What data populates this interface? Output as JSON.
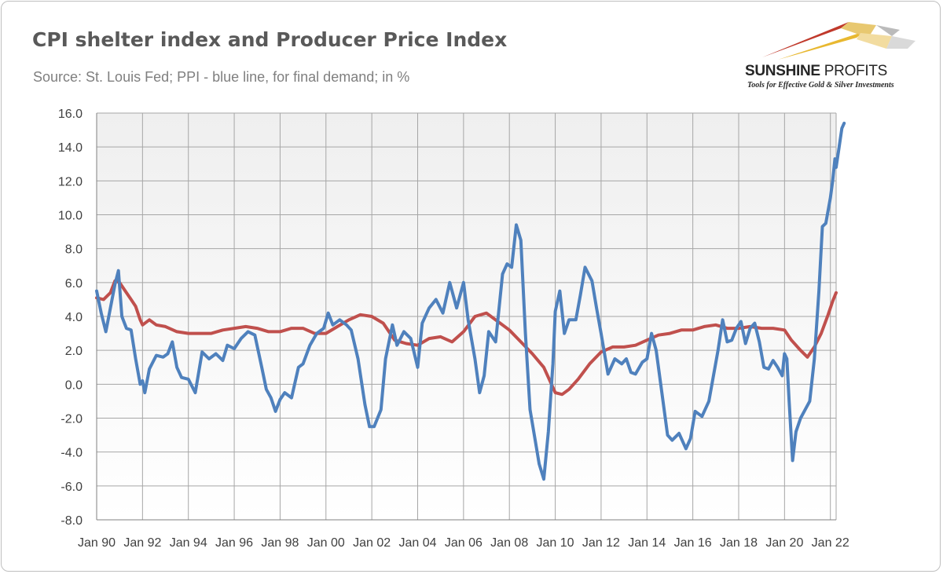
{
  "header": {
    "title": "CPI shelter index and Producer Price Index",
    "subtitle": "Source: St. Louis Fed; PPI - blue line, for final demand; in %"
  },
  "logo": {
    "name_part1": "SUNSHINE",
    "name_part2": "PROFITS",
    "tagline": "Tools for Effective Gold & Silver Investments",
    "colors": [
      "#c0392b",
      "#e8b830",
      "#8c8c8c"
    ]
  },
  "chart_data": {
    "type": "line",
    "title": "CPI shelter index and Producer Price Index",
    "subtitle": "Source: St. Louis Fed; PPI - blue line, for final demand; in %",
    "xlabel": "",
    "ylabel": "",
    "ylim": [
      -8,
      16
    ],
    "xlim": [
      1990.0,
      2022.25
    ],
    "yticks": [
      "16.0",
      "14.0",
      "12.0",
      "10.0",
      "8.0",
      "6.0",
      "4.0",
      "2.0",
      "0.0",
      "-2.0",
      "-4.0",
      "-6.0",
      "-8.0"
    ],
    "xticks": [
      "Jan 90",
      "Jan 92",
      "Jan 94",
      "Jan 96",
      "Jan 98",
      "Jan 00",
      "Jan 02",
      "Jan 04",
      "Jan 06",
      "Jan 08",
      "Jan 10",
      "Jan 12",
      "Jan 14",
      "Jan 16",
      "Jan 18",
      "Jan 20",
      "Jan 22"
    ],
    "grid": true,
    "legend": "none",
    "series": [
      {
        "color": "#c0504d",
        "points": [
          [
            1990.0,
            5.1
          ],
          [
            1990.3,
            5.0
          ],
          [
            1990.6,
            5.4
          ],
          [
            1990.8,
            6.1
          ],
          [
            1991.0,
            6.0
          ],
          [
            1991.2,
            5.6
          ],
          [
            1991.5,
            5.0
          ],
          [
            1991.7,
            4.6
          ],
          [
            1991.9,
            3.8
          ],
          [
            1992.0,
            3.5
          ],
          [
            1992.3,
            3.8
          ],
          [
            1992.6,
            3.5
          ],
          [
            1993.0,
            3.4
          ],
          [
            1993.5,
            3.1
          ],
          [
            1994.0,
            3.0
          ],
          [
            1994.5,
            3.0
          ],
          [
            1995.0,
            3.0
          ],
          [
            1995.5,
            3.2
          ],
          [
            1996.0,
            3.3
          ],
          [
            1996.5,
            3.4
          ],
          [
            1997.0,
            3.3
          ],
          [
            1997.5,
            3.1
          ],
          [
            1998.0,
            3.1
          ],
          [
            1998.5,
            3.3
          ],
          [
            1999.0,
            3.3
          ],
          [
            1999.5,
            3.0
          ],
          [
            2000.0,
            3.0
          ],
          [
            2000.5,
            3.4
          ],
          [
            2001.0,
            3.8
          ],
          [
            2001.5,
            4.1
          ],
          [
            2002.0,
            4.0
          ],
          [
            2002.5,
            3.6
          ],
          [
            2003.0,
            2.6
          ],
          [
            2003.5,
            2.4
          ],
          [
            2004.0,
            2.3
          ],
          [
            2004.5,
            2.7
          ],
          [
            2005.0,
            2.8
          ],
          [
            2005.5,
            2.5
          ],
          [
            2006.0,
            3.1
          ],
          [
            2006.5,
            4.0
          ],
          [
            2007.0,
            4.2
          ],
          [
            2007.5,
            3.7
          ],
          [
            2008.0,
            3.2
          ],
          [
            2008.5,
            2.5
          ],
          [
            2009.0,
            1.8
          ],
          [
            2009.5,
            1.0
          ],
          [
            2010.0,
            -0.5
          ],
          [
            2010.3,
            -0.6
          ],
          [
            2010.6,
            -0.3
          ],
          [
            2011.0,
            0.3
          ],
          [
            2011.5,
            1.2
          ],
          [
            2012.0,
            1.9
          ],
          [
            2012.5,
            2.2
          ],
          [
            2013.0,
            2.2
          ],
          [
            2013.5,
            2.3
          ],
          [
            2014.0,
            2.6
          ],
          [
            2014.5,
            2.9
          ],
          [
            2015.0,
            3.0
          ],
          [
            2015.5,
            3.2
          ],
          [
            2016.0,
            3.2
          ],
          [
            2016.5,
            3.4
          ],
          [
            2017.0,
            3.5
          ],
          [
            2017.5,
            3.3
          ],
          [
            2018.0,
            3.3
          ],
          [
            2018.5,
            3.4
          ],
          [
            2019.0,
            3.3
          ],
          [
            2019.5,
            3.3
          ],
          [
            2020.0,
            3.2
          ],
          [
            2020.3,
            2.6
          ],
          [
            2020.7,
            2.0
          ],
          [
            2021.0,
            1.6
          ],
          [
            2021.3,
            2.2
          ],
          [
            2021.6,
            3.0
          ],
          [
            2021.9,
            4.1
          ],
          [
            2022.1,
            4.9
          ],
          [
            2022.25,
            5.4
          ]
        ]
      },
      {
        "color": "#4f81bd",
        "points": [
          [
            1990.0,
            5.5
          ],
          [
            1990.2,
            4.2
          ],
          [
            1990.4,
            3.1
          ],
          [
            1990.6,
            4.5
          ],
          [
            1990.8,
            5.9
          ],
          [
            1990.95,
            6.7
          ],
          [
            1991.1,
            4.0
          ],
          [
            1991.3,
            3.3
          ],
          [
            1991.5,
            3.2
          ],
          [
            1991.7,
            1.5
          ],
          [
            1991.9,
            0.0
          ],
          [
            1992.0,
            0.2
          ],
          [
            1992.1,
            -0.5
          ],
          [
            1992.3,
            0.9
          ],
          [
            1992.6,
            1.7
          ],
          [
            1992.9,
            1.6
          ],
          [
            1993.1,
            1.8
          ],
          [
            1993.3,
            2.5
          ],
          [
            1993.5,
            1.0
          ],
          [
            1993.7,
            0.4
          ],
          [
            1994.0,
            0.3
          ],
          [
            1994.3,
            -0.5
          ],
          [
            1994.6,
            1.9
          ],
          [
            1994.9,
            1.5
          ],
          [
            1995.2,
            1.8
          ],
          [
            1995.5,
            1.4
          ],
          [
            1995.7,
            2.3
          ],
          [
            1996.0,
            2.1
          ],
          [
            1996.3,
            2.7
          ],
          [
            1996.6,
            3.1
          ],
          [
            1996.9,
            2.9
          ],
          [
            1997.2,
            1.0
          ],
          [
            1997.4,
            -0.3
          ],
          [
            1997.6,
            -0.8
          ],
          [
            1997.8,
            -1.6
          ],
          [
            1998.0,
            -0.9
          ],
          [
            1998.2,
            -0.5
          ],
          [
            1998.5,
            -0.8
          ],
          [
            1998.8,
            1.0
          ],
          [
            1999.0,
            1.2
          ],
          [
            1999.3,
            2.3
          ],
          [
            1999.6,
            3.0
          ],
          [
            1999.9,
            3.3
          ],
          [
            2000.1,
            4.2
          ],
          [
            2000.3,
            3.5
          ],
          [
            2000.6,
            3.8
          ],
          [
            2000.9,
            3.5
          ],
          [
            2001.1,
            3.2
          ],
          [
            2001.4,
            1.5
          ],
          [
            2001.7,
            -1.2
          ],
          [
            2001.9,
            -2.5
          ],
          [
            2002.1,
            -2.5
          ],
          [
            2002.4,
            -1.5
          ],
          [
            2002.6,
            1.5
          ],
          [
            2002.9,
            3.5
          ],
          [
            2003.1,
            2.3
          ],
          [
            2003.4,
            3.1
          ],
          [
            2003.7,
            2.7
          ],
          [
            2004.0,
            1.0
          ],
          [
            2004.2,
            3.6
          ],
          [
            2004.5,
            4.5
          ],
          [
            2004.8,
            5.0
          ],
          [
            2005.1,
            4.2
          ],
          [
            2005.4,
            6.0
          ],
          [
            2005.7,
            4.5
          ],
          [
            2006.0,
            6.0
          ],
          [
            2006.2,
            3.8
          ],
          [
            2006.5,
            1.5
          ],
          [
            2006.7,
            -0.5
          ],
          [
            2006.9,
            0.5
          ],
          [
            2007.1,
            3.1
          ],
          [
            2007.4,
            2.5
          ],
          [
            2007.7,
            6.5
          ],
          [
            2007.9,
            7.1
          ],
          [
            2008.1,
            6.9
          ],
          [
            2008.3,
            9.4
          ],
          [
            2008.5,
            8.5
          ],
          [
            2008.7,
            3.0
          ],
          [
            2008.9,
            -1.5
          ],
          [
            2009.1,
            -3.1
          ],
          [
            2009.3,
            -4.7
          ],
          [
            2009.5,
            -5.6
          ],
          [
            2009.7,
            -2.8
          ],
          [
            2009.9,
            1.2
          ],
          [
            2010.0,
            4.3
          ],
          [
            2010.2,
            5.5
          ],
          [
            2010.4,
            3.0
          ],
          [
            2010.6,
            3.8
          ],
          [
            2010.9,
            3.8
          ],
          [
            2011.1,
            5.3
          ],
          [
            2011.3,
            6.9
          ],
          [
            2011.6,
            6.1
          ],
          [
            2011.8,
            4.5
          ],
          [
            2012.0,
            3.0
          ],
          [
            2012.3,
            0.6
          ],
          [
            2012.6,
            1.5
          ],
          [
            2012.9,
            1.2
          ],
          [
            2013.1,
            1.5
          ],
          [
            2013.3,
            0.7
          ],
          [
            2013.5,
            0.6
          ],
          [
            2013.8,
            1.3
          ],
          [
            2014.0,
            1.5
          ],
          [
            2014.2,
            3.0
          ],
          [
            2014.4,
            2.0
          ],
          [
            2014.6,
            0.0
          ],
          [
            2014.9,
            -3.0
          ],
          [
            2015.1,
            -3.3
          ],
          [
            2015.4,
            -2.9
          ],
          [
            2015.7,
            -3.8
          ],
          [
            2015.9,
            -3.2
          ],
          [
            2016.1,
            -1.6
          ],
          [
            2016.4,
            -1.9
          ],
          [
            2016.7,
            -1.0
          ],
          [
            2016.9,
            0.5
          ],
          [
            2017.1,
            2.0
          ],
          [
            2017.3,
            3.8
          ],
          [
            2017.5,
            2.5
          ],
          [
            2017.7,
            2.6
          ],
          [
            2017.9,
            3.3
          ],
          [
            2018.1,
            3.7
          ],
          [
            2018.3,
            2.4
          ],
          [
            2018.5,
            3.3
          ],
          [
            2018.7,
            3.6
          ],
          [
            2018.9,
            2.5
          ],
          [
            2019.1,
            1.0
          ],
          [
            2019.3,
            0.9
          ],
          [
            2019.5,
            1.4
          ],
          [
            2019.7,
            1.0
          ],
          [
            2019.9,
            0.5
          ],
          [
            2020.0,
            1.8
          ],
          [
            2020.1,
            1.5
          ],
          [
            2020.2,
            -1.0
          ],
          [
            2020.35,
            -4.5
          ],
          [
            2020.5,
            -2.8
          ],
          [
            2020.7,
            -2.0
          ],
          [
            2020.9,
            -1.5
          ],
          [
            2021.1,
            -1.0
          ],
          [
            2021.3,
            1.5
          ],
          [
            2021.5,
            5.5
          ],
          [
            2021.65,
            9.3
          ],
          [
            2021.8,
            9.5
          ],
          [
            2022.0,
            11.0
          ],
          [
            2022.1,
            12.0
          ],
          [
            2022.2,
            13.3
          ],
          [
            2022.25,
            12.8
          ],
          [
            2022.35,
            13.7
          ],
          [
            2022.5,
            15.1
          ],
          [
            2022.6,
            15.4
          ]
        ]
      }
    ]
  }
}
